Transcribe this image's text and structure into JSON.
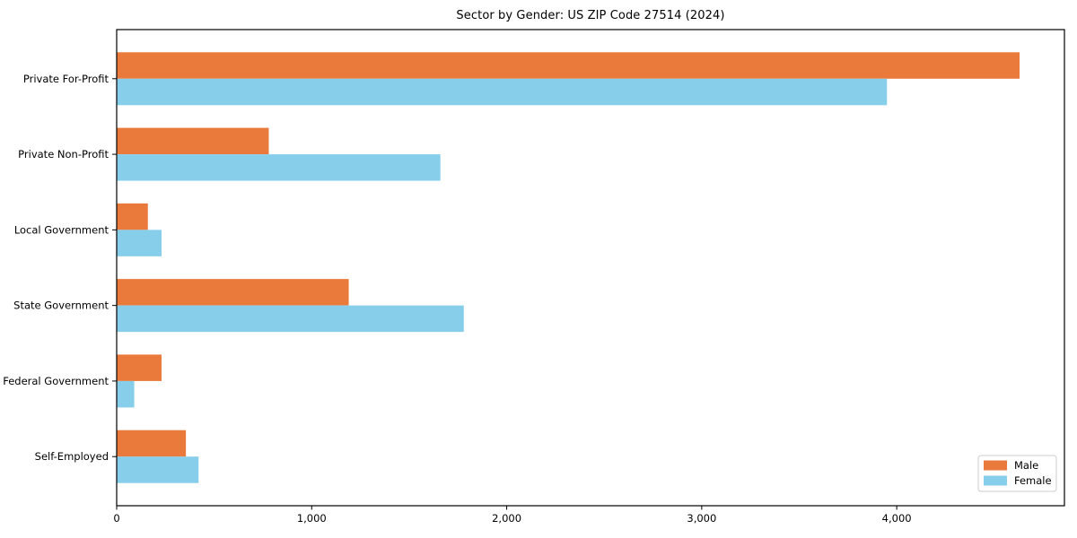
{
  "chart_data": {
    "type": "bar",
    "orientation": "horizontal",
    "title": "Sector by Gender: US ZIP Code 27514 (2024)",
    "categories": [
      "Private For-Profit",
      "Private Non-Profit",
      "Local Government",
      "State Government",
      "Federal Government",
      "Self-Employed"
    ],
    "series": [
      {
        "name": "Male",
        "color": "#EA7A3C",
        "values": [
          4630,
          780,
          160,
          1190,
          230,
          355
        ]
      },
      {
        "name": "Female",
        "color": "#87CEEB",
        "values": [
          3950,
          1660,
          230,
          1780,
          90,
          420
        ]
      }
    ],
    "xlim": [
      0,
      4860
    ],
    "x_ticks": [
      0,
      1000,
      2000,
      3000,
      4000
    ],
    "x_tick_labels": [
      "0",
      "1,000",
      "2,000",
      "3,000",
      "4,000"
    ],
    "grid": false,
    "legend": {
      "position": "lower right",
      "border_color": "#cccccc",
      "background": "#ffffff"
    },
    "spine_color": "#000000",
    "bar_height_units": 0.35,
    "edge_pad_units": 0.65
  }
}
